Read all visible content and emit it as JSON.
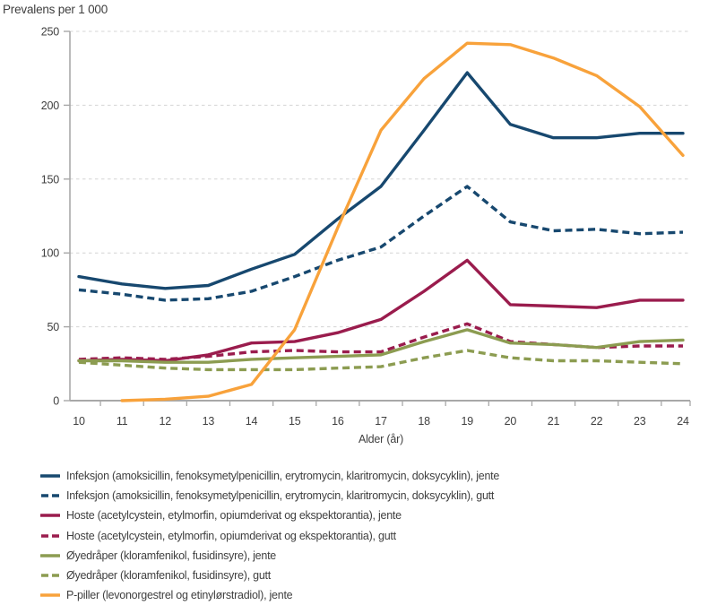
{
  "chart_data": {
    "type": "line",
    "y_axis_title": "Prevalens per 1 000",
    "xlabel": "Alder (år)",
    "ylim": [
      0,
      250
    ],
    "yticks": [
      0,
      50,
      100,
      150,
      200,
      250
    ],
    "x": [
      10,
      11,
      12,
      13,
      14,
      15,
      16,
      17,
      18,
      19,
      20,
      21,
      22,
      23,
      24
    ],
    "grid": "horizontal-dashed",
    "legend_position": "bottom-left",
    "axis_color": "#a8a8a8",
    "grid_color": "#d4d4d4",
    "text_color": "#3f3f3f",
    "series": [
      {
        "name": "infeksjon-jente",
        "label": "Infeksjon (amoksicillin, fenoksymetylpenicillin, erytromycin, klaritromycin, doksycyklin), jente",
        "color": "#17486f",
        "dash": "solid",
        "values": [
          84,
          79,
          76,
          78,
          89,
          99,
          123,
          145,
          183,
          222,
          187,
          178,
          178,
          181,
          181
        ]
      },
      {
        "name": "infeksjon-gutt",
        "label": "Infeksjon (amoksicillin, fenoksymetylpenicillin, erytromycin, klaritromycin, doksycyklin), gutt",
        "color": "#17486f",
        "dash": "dashed",
        "values": [
          75,
          72,
          68,
          69,
          74,
          84,
          95,
          104,
          125,
          145,
          121,
          115,
          116,
          113,
          114
        ]
      },
      {
        "name": "hoste-jente",
        "label": "Hoste (acetylcystein, etylmorfin, opiumderivat og ekspektorantia), jente",
        "color": "#9a1c4d",
        "dash": "solid",
        "values": [
          27,
          28,
          27,
          31,
          39,
          40,
          46,
          55,
          74,
          95,
          65,
          64,
          63,
          68,
          68
        ]
      },
      {
        "name": "hoste-gutt",
        "label": "Hoste (acetylcystein, etylmorfin, opiumderivat og ekspektorantia), gutt",
        "color": "#9a1c4d",
        "dash": "dashed",
        "values": [
          28,
          29,
          28,
          30,
          33,
          34,
          33,
          33,
          43,
          52,
          40,
          38,
          36,
          37,
          37
        ]
      },
      {
        "name": "oyedraper-jente",
        "label": "Øyedråper (kloramfenikol, fusidinsyre), jente",
        "color": "#8c9c51",
        "dash": "solid",
        "values": [
          27,
          27,
          26,
          26,
          28,
          29,
          30,
          31,
          40,
          48,
          39,
          38,
          36,
          40,
          41
        ]
      },
      {
        "name": "oyedraper-gutt",
        "label": "Øyedråper (kloramfenikol, fusidinsyre), gutt",
        "color": "#8c9c51",
        "dash": "dashed",
        "values": [
          26,
          24,
          22,
          21,
          21,
          21,
          22,
          23,
          29,
          34,
          29,
          27,
          27,
          26,
          25
        ]
      },
      {
        "name": "p-piller-jente",
        "label": "P-piller (levonorgestrel og etinylørstradiol), jente",
        "color": "#f8a23b",
        "dash": "solid",
        "values": [
          null,
          0,
          1,
          3,
          11,
          48,
          117,
          183,
          218,
          242,
          241,
          232,
          220,
          199,
          166
        ]
      }
    ]
  }
}
